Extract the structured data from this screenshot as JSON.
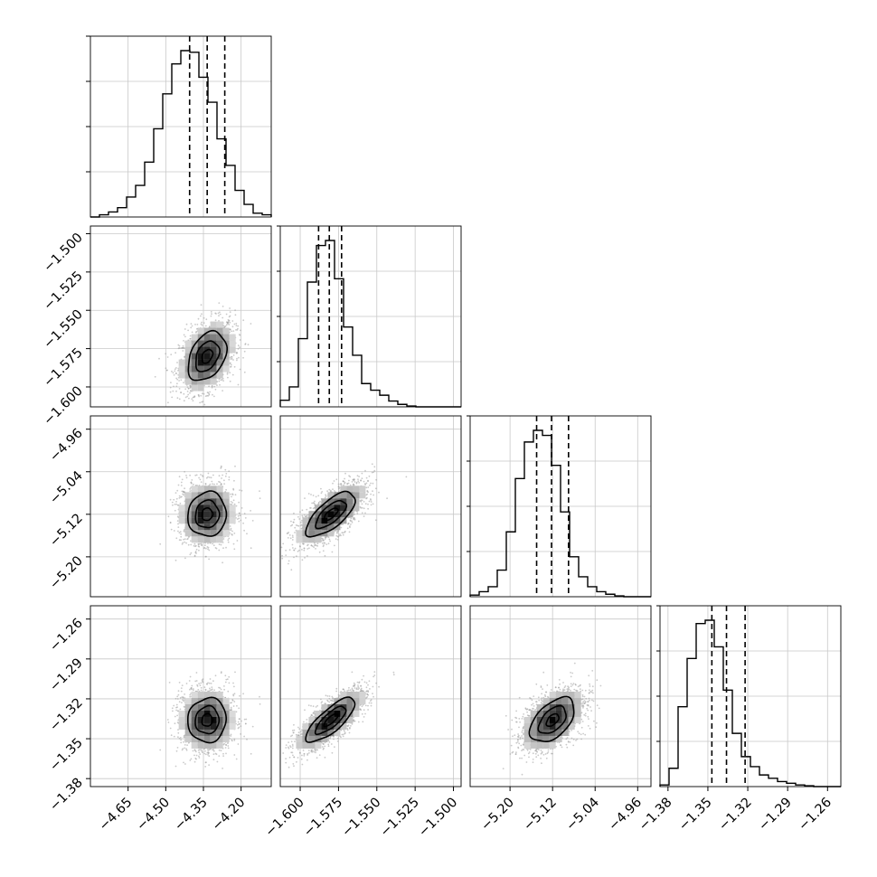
{
  "chart_data": {
    "type": "corner",
    "params": [
      {
        "range": [
          -4.8,
          -4.08
        ],
        "ticks": [
          -4.65,
          -4.5,
          -4.35,
          -4.2
        ],
        "tick_labels": [
          "−4.65",
          "−4.50",
          "−4.35",
          "−4.20"
        ],
        "quantiles": [
          -4.405,
          -4.335,
          -4.265
        ],
        "mean": -4.335,
        "sd": 0.055,
        "hist": [
          0.0,
          0.013,
          0.03,
          0.056,
          0.12,
          0.19,
          0.33,
          0.53,
          0.74,
          0.92,
          1.0,
          0.99,
          0.84,
          0.69,
          0.47,
          0.31,
          0.16,
          0.076,
          0.023,
          0.013
        ]
      },
      {
        "range": [
          -1.613,
          -1.495
        ],
        "ticks": [
          -1.6,
          -1.575,
          -1.55,
          -1.525,
          -1.5
        ],
        "tick_labels": [
          "−1.600",
          "−1.575",
          "−1.550",
          "−1.525",
          "−1.500"
        ],
        "quantiles": [
          -1.588,
          -1.581,
          -1.573
        ],
        "mean": -1.58,
        "sd": 0.0115,
        "hist": [
          0.04,
          0.12,
          0.41,
          0.75,
          0.97,
          1.0,
          0.77,
          0.48,
          0.31,
          0.14,
          0.1,
          0.07,
          0.035,
          0.015,
          0.005,
          0.0,
          0.0,
          0.0,
          0.0,
          0.0
        ]
      },
      {
        "range": [
          -5.275,
          -4.935
        ],
        "ticks": [
          -5.2,
          -5.12,
          -5.04,
          -4.96
        ],
        "tick_labels": [
          "−5.20",
          "−5.12",
          "−5.04",
          "−4.96"
        ],
        "quantiles": [
          -5.15,
          -5.122,
          -5.09
        ],
        "mean": -5.12,
        "sd": 0.03,
        "hist": [
          0.01,
          0.03,
          0.06,
          0.16,
          0.39,
          0.71,
          0.93,
          1.0,
          0.97,
          0.79,
          0.51,
          0.24,
          0.12,
          0.06,
          0.03,
          0.015,
          0.005,
          0.0,
          0.0,
          0.0
        ]
      },
      {
        "range": [
          -1.386,
          -1.25
        ],
        "ticks": [
          -1.38,
          -1.35,
          -1.32,
          -1.29,
          -1.26
        ],
        "tick_labels": [
          "−1.38",
          "−1.35",
          "−1.32",
          "−1.29",
          "−1.26"
        ],
        "quantiles": [
          -1.347,
          -1.336,
          -1.322
        ],
        "mean": -1.336,
        "sd": 0.012,
        "hist": [
          0.01,
          0.11,
          0.48,
          0.77,
          0.98,
          1.0,
          0.84,
          0.58,
          0.32,
          0.18,
          0.12,
          0.07,
          0.05,
          0.03,
          0.02,
          0.01,
          0.005,
          0.0,
          0.0,
          0.0
        ]
      }
    ],
    "correlations": {
      "1-0": 0.35,
      "2-0": 0.05,
      "2-1": 0.7,
      "3-0": 0.05,
      "3-1": 0.78,
      "3-2": 0.5
    },
    "contour_levels": [
      0.39,
      0.86,
      1.39
    ],
    "grid": true,
    "scatter_color": "#9e9e9e",
    "line_color": "#000000"
  }
}
